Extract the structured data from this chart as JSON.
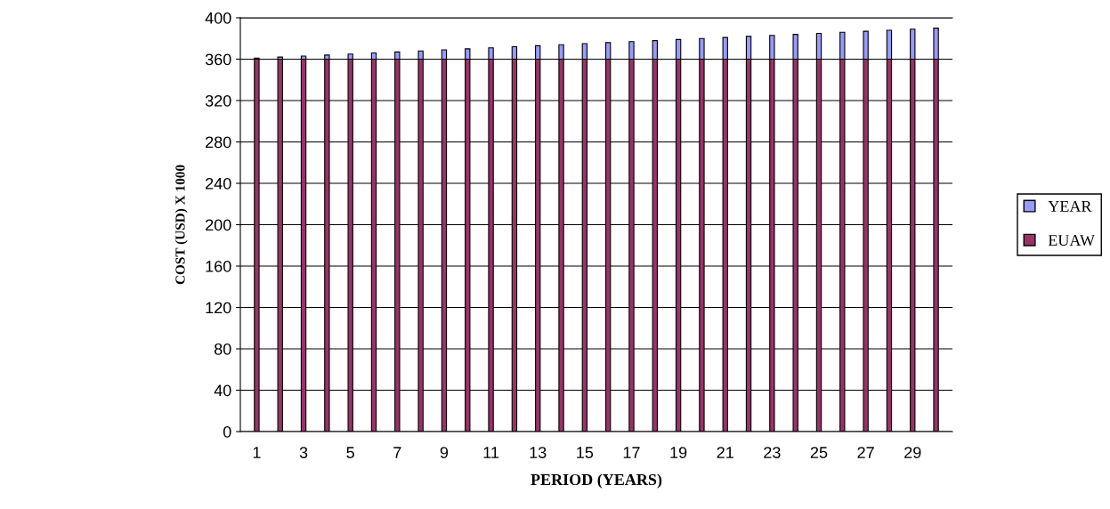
{
  "chart_data": {
    "type": "bar",
    "stacked": true,
    "xlabel": "PERIOD (YEARS)",
    "ylabel": "COST (USD) X 1000",
    "categories": [
      "1",
      null,
      "3",
      null,
      "5",
      null,
      "7",
      null,
      "9",
      null,
      "11",
      null,
      "13",
      null,
      "15",
      null,
      "17",
      null,
      "19",
      null,
      "21",
      null,
      "23",
      null,
      "25",
      null,
      "27",
      null,
      "29",
      null
    ],
    "series": [
      {
        "name": "EUAW",
        "color": "#993366",
        "values": [
          360,
          360,
          360,
          360,
          360,
          360,
          360,
          360,
          360,
          360,
          360,
          360,
          360,
          360,
          360,
          360,
          360,
          360,
          360,
          360,
          360,
          360,
          360,
          360,
          360,
          360,
          360,
          360,
          360,
          360
        ]
      },
      {
        "name": "YEAR",
        "color": "#9999ff",
        "values": [
          1,
          2,
          3,
          4,
          5,
          6,
          7,
          8,
          9,
          10,
          11,
          12,
          13,
          14,
          15,
          16,
          17,
          18,
          19,
          20,
          21,
          22,
          23,
          24,
          25,
          26,
          27,
          28,
          29,
          30
        ]
      }
    ],
    "ylim": [
      0,
      400
    ],
    "yticks": [
      0,
      40,
      80,
      120,
      160,
      200,
      240,
      280,
      320,
      360,
      400
    ],
    "grid": "y",
    "legend": "right"
  }
}
